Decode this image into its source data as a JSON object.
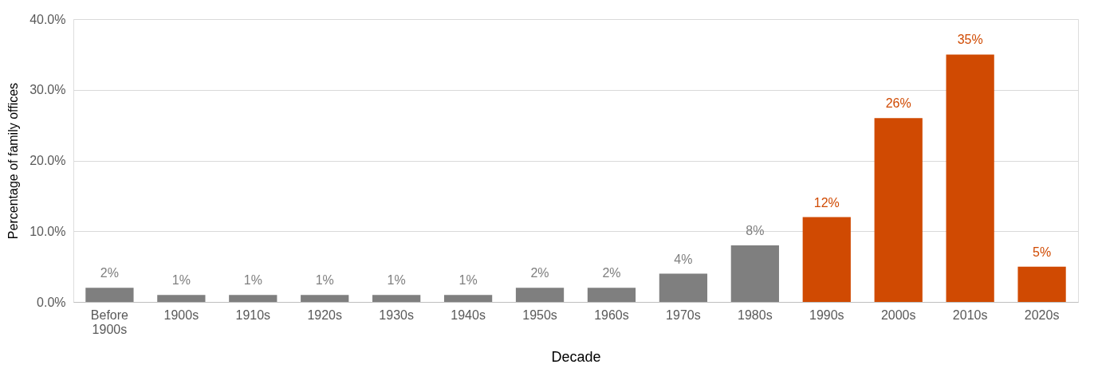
{
  "chart_data": {
    "type": "bar",
    "xlabel": "Decade",
    "ylabel": "Percentage of family offices",
    "categories": [
      "Before 1900s",
      "1900s",
      "1910s",
      "1920s",
      "1930s",
      "1940s",
      "1950s",
      "1960s",
      "1970s",
      "1980s",
      "1990s",
      "2000s",
      "2010s",
      "2020s"
    ],
    "values": [
      2,
      1,
      1,
      1,
      1,
      1,
      2,
      2,
      4,
      8,
      12,
      26,
      35,
      5
    ],
    "value_labels": [
      "2%",
      "1%",
      "1%",
      "1%",
      "1%",
      "1%",
      "2%",
      "2%",
      "4%",
      "8%",
      "12%",
      "26%",
      "35%",
      "5%"
    ],
    "colors": [
      "#7f7f7f",
      "#7f7f7f",
      "#7f7f7f",
      "#7f7f7f",
      "#7f7f7f",
      "#7f7f7f",
      "#7f7f7f",
      "#7f7f7f",
      "#7f7f7f",
      "#7f7f7f",
      "#d04a02",
      "#d04a02",
      "#d04a02",
      "#d04a02"
    ],
    "ylim": [
      0,
      40
    ],
    "yticks": [
      {
        "value": 0,
        "label": "0.0%"
      },
      {
        "value": 10,
        "label": "10.0%"
      },
      {
        "value": 20,
        "label": "20.0%"
      },
      {
        "value": 30,
        "label": "30.0%"
      },
      {
        "value": 40,
        "label": "40.0%"
      }
    ],
    "grid": "y"
  }
}
